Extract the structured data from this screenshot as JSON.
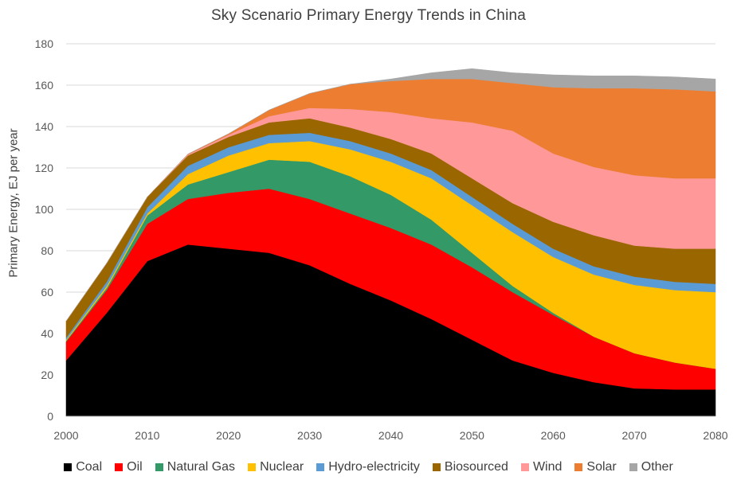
{
  "chart_data": {
    "type": "area",
    "title": "Sky Scenario Primary Energy Trends in China",
    "xlabel": "",
    "ylabel": "Primary Energy, EJ per year",
    "xlim": [
      2000,
      2080
    ],
    "ylim": [
      0,
      180
    ],
    "xticks": [
      2000,
      2010,
      2020,
      2030,
      2040,
      2050,
      2060,
      2070,
      2080
    ],
    "yticks": [
      0,
      20,
      40,
      60,
      80,
      100,
      120,
      140,
      160,
      180
    ],
    "grid": true,
    "stacked": true,
    "legend_position": "bottom",
    "x": [
      2000,
      2005,
      2010,
      2015,
      2020,
      2025,
      2030,
      2035,
      2040,
      2045,
      2050,
      2055,
      2060,
      2065,
      2070,
      2075,
      2080
    ],
    "series": [
      {
        "name": "Coal",
        "color": "#000000",
        "values": [
          27,
          50,
          75,
          83,
          81,
          79,
          73,
          64,
          56,
          47,
          37,
          27,
          21,
          16.5,
          13.5,
          13,
          13
        ]
      },
      {
        "name": "Oil",
        "color": "#ff0000",
        "values": [
          9,
          11,
          18,
          22,
          27,
          31,
          32,
          34,
          35,
          36,
          35,
          33,
          28,
          22,
          17,
          13,
          10
        ]
      },
      {
        "name": "Natural Gas",
        "color": "#339966",
        "values": [
          0.5,
          1,
          4,
          7,
          10,
          14,
          18,
          18,
          16,
          12,
          7,
          3,
          1,
          0,
          0,
          0,
          0
        ]
      },
      {
        "name": "Nuclear",
        "color": "#ffc000",
        "values": [
          0.5,
          1,
          1,
          5,
          8,
          8,
          10,
          13,
          16,
          20,
          23,
          26,
          27,
          30,
          33,
          35,
          37
        ]
      },
      {
        "name": "Hydro-electricity",
        "color": "#5b9bd5",
        "values": [
          1,
          2,
          3,
          4,
          4,
          4,
          4,
          4,
          4,
          4,
          4,
          4,
          4,
          4,
          4,
          4,
          4
        ]
      },
      {
        "name": "Biosourced",
        "color": "#996600",
        "values": [
          8,
          9,
          5,
          5,
          5,
          6,
          7,
          6.5,
          7,
          8,
          9,
          10,
          13,
          15,
          15,
          16,
          17
        ]
      },
      {
        "name": "Wind",
        "color": "#ff9999",
        "values": [
          0,
          0,
          0,
          0.5,
          1,
          3,
          5,
          9,
          13,
          17,
          27,
          35,
          33,
          33,
          34,
          34,
          34
        ]
      },
      {
        "name": "Solar",
        "color": "#ed7d31",
        "values": [
          0,
          0,
          0,
          0.2,
          0.5,
          3,
          7,
          12,
          15,
          19,
          21,
          23,
          32,
          38,
          42,
          43,
          42
        ]
      },
      {
        "name": "Other",
        "color": "#a6a6a6",
        "values": [
          0,
          0,
          0,
          0,
          0,
          0,
          0,
          0,
          1,
          3,
          5,
          5,
          6,
          6,
          6,
          6,
          6
        ]
      }
    ]
  }
}
